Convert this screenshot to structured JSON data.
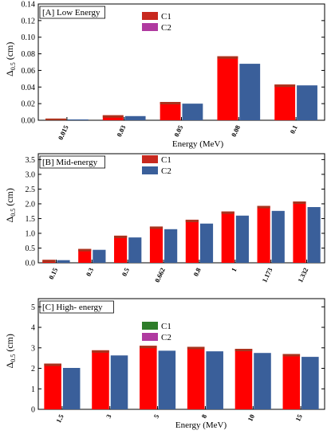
{
  "chart_data": [
    {
      "type": "bar",
      "panel_label": "[A] Low Energy",
      "xlabel": "Energy (MeV)",
      "ylabel": "Δ0.5 (cm)",
      "ylabel_main": "Δ",
      "ylabel_sub": "0.5",
      "ylabel_unit": " (cm)",
      "categories": [
        "0.015",
        "0.03",
        "0.05",
        "0.08",
        "0.1"
      ],
      "ylim": [
        0,
        0.14
      ],
      "yticks": [
        "0.00",
        "0.02",
        "0.04",
        "0.06",
        "0.08",
        "0.10",
        "0.12",
        "0.14"
      ],
      "ytick_values": [
        0,
        0.02,
        0.04,
        0.06,
        0.08,
        0.1,
        0.12,
        0.14
      ],
      "series": [
        {
          "name": "C1",
          "color": "#ff0000",
          "values": [
            0.002,
            0.006,
            0.022,
            0.077,
            0.043
          ]
        },
        {
          "name": "C2",
          "color": "#3a5f9a",
          "values": [
            0.001,
            0.005,
            0.02,
            0.068,
            0.042
          ]
        }
      ],
      "legend_position": "top-left",
      "legend_colors": [
        "#c8281e",
        "#b03aa0"
      ]
    },
    {
      "type": "bar",
      "panel_label": "[B] Mid-energy",
      "xlabel": "Energy (MeV)",
      "ylabel": "Δ0.5 (cm)",
      "ylabel_main": "Δ",
      "ylabel_sub": "0.5",
      "ylabel_unit": " (cm)",
      "categories": [
        "0.15",
        "0.3",
        "0.5",
        "0.662",
        "0.8",
        "1",
        "1.173",
        "1.332"
      ],
      "ylim": [
        0,
        3.7
      ],
      "yticks": [
        "0.0",
        "0.5",
        "1.0",
        "1.5",
        "2.0",
        "2.5",
        "3.0",
        "3.5"
      ],
      "ytick_values": [
        0,
        0.5,
        1.0,
        1.5,
        2.0,
        2.5,
        3.0,
        3.5
      ],
      "series": [
        {
          "name": "C1",
          "color": "#ff0000",
          "values": [
            0.1,
            0.47,
            0.92,
            1.23,
            1.46,
            1.74,
            1.93,
            2.08
          ]
        },
        {
          "name": "C2",
          "color": "#3a5f9a",
          "values": [
            0.09,
            0.44,
            0.86,
            1.14,
            1.33,
            1.6,
            1.76,
            1.89
          ]
        }
      ],
      "legend_position": "top-right",
      "legend_colors": [
        "#c8281e",
        "#3a5f9a"
      ]
    },
    {
      "type": "bar",
      "panel_label": "[C] High- energy",
      "xlabel": "Energy (MeV)",
      "ylabel": "Δ0.5 (cm)",
      "ylabel_main": "Δ",
      "ylabel_sub": "0.5",
      "ylabel_unit": " (cm)",
      "categories": [
        "1.5",
        "3",
        "5",
        "8",
        "10",
        "15"
      ],
      "ylim": [
        0,
        5.4
      ],
      "yticks": [
        "0",
        "1",
        "2",
        "3",
        "4",
        "5"
      ],
      "ytick_values": [
        0,
        1,
        2,
        3,
        4,
        5
      ],
      "series": [
        {
          "name": "C1",
          "color": "#ff0000",
          "values": [
            2.23,
            2.88,
            3.1,
            3.05,
            2.95,
            2.7
          ]
        },
        {
          "name": "C2",
          "color": "#3a5f9a",
          "values": [
            2.02,
            2.63,
            2.86,
            2.83,
            2.75,
            2.56
          ]
        }
      ],
      "legend_position": "top-right",
      "legend_colors": [
        "#2e7d2a",
        "#b03aa0"
      ]
    }
  ]
}
